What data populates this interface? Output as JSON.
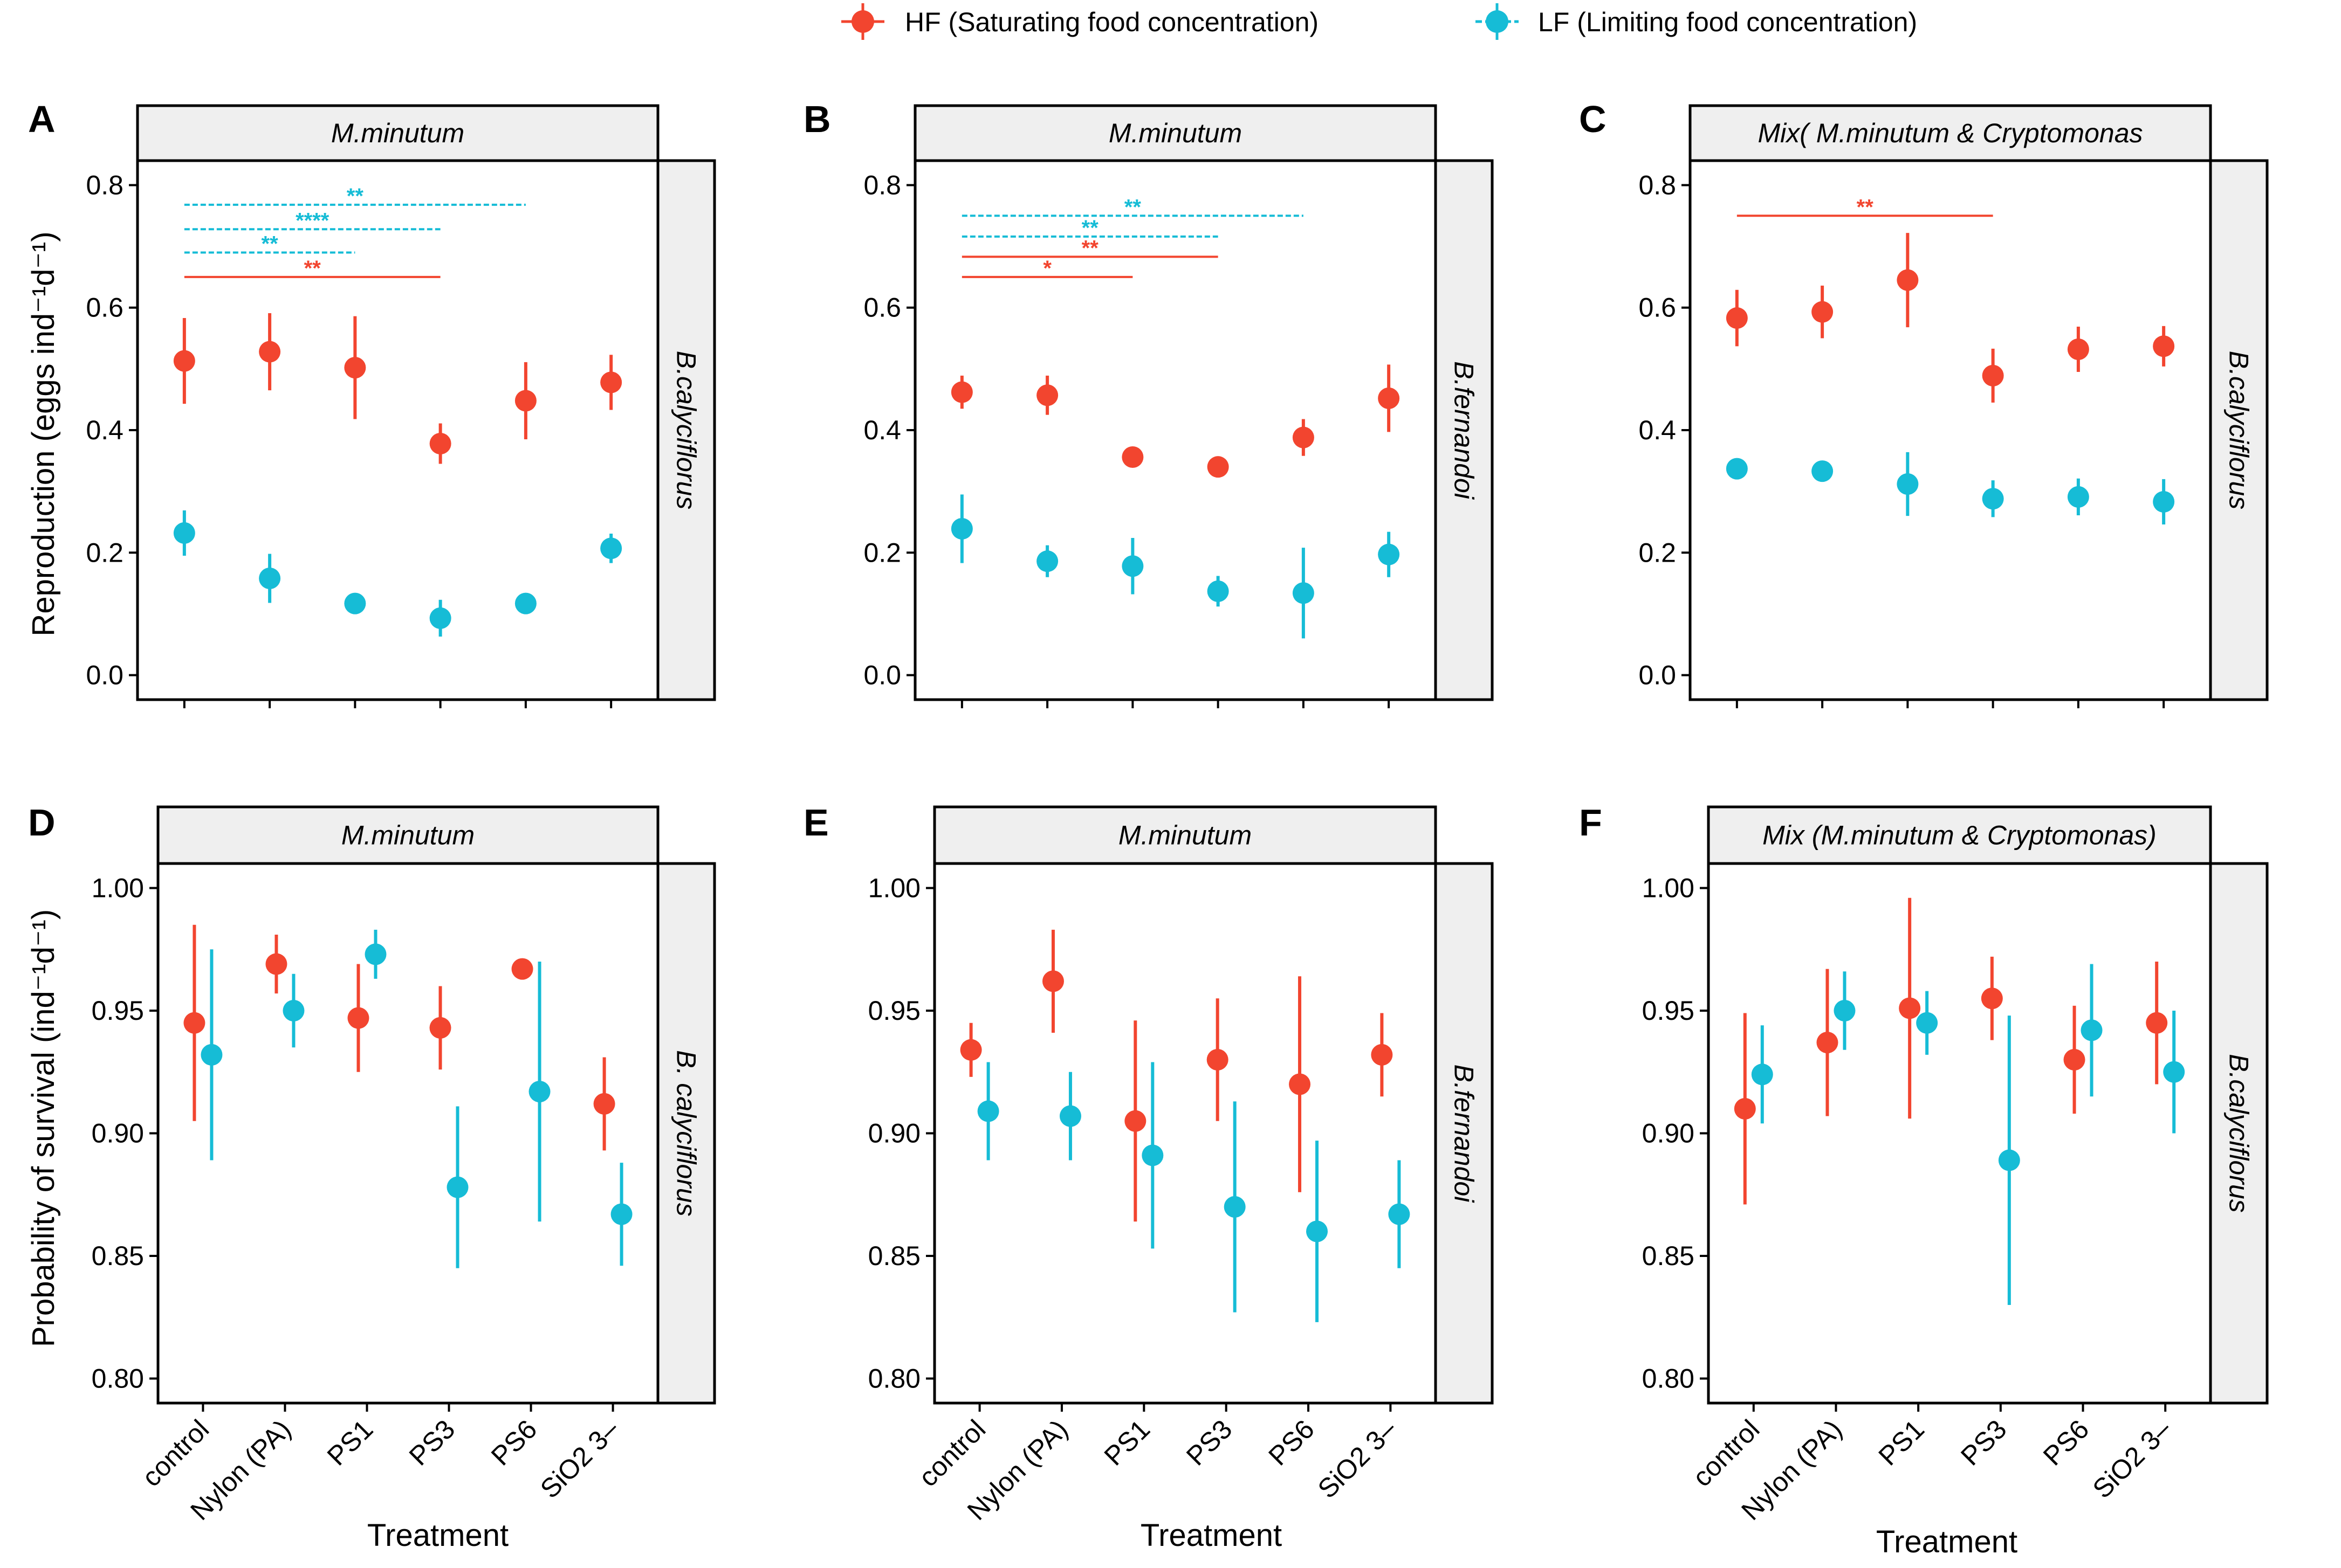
{
  "colors": {
    "HF": "#F2452F",
    "LF": "#16BCD6"
  },
  "legend": {
    "hf_label": "HF (Saturating food concentration)",
    "lf_label": "LF (Limiting food concentration)"
  },
  "y_titles": {
    "reproduction": "Reproduction (eggs ind⁻¹d⁻¹)",
    "survival": "Probability of survival (ind⁻¹d⁻¹)"
  },
  "x_title": "Treatment",
  "chart_data": [
    {
      "panel": "A",
      "type": "scatter",
      "strip_top": "M.minutum",
      "strip_right": "B.calyciflorus",
      "ylabel": "Reproduction (eggs ind⁻¹d⁻¹)",
      "xlabel": "",
      "ylim": [
        -0.04,
        0.84
      ],
      "yticks": [
        0.0,
        0.2,
        0.4,
        0.6,
        0.8
      ],
      "ytick_labels": [
        "0.0",
        "0.2",
        "0.4",
        "0.6",
        "0.8"
      ],
      "categories": [
        "control",
        "Nylon (PA)",
        "PS1",
        "PS3",
        "PS6",
        "SiO2 3–"
      ],
      "show_x_labels": false,
      "series": [
        {
          "name": "HF",
          "values": [
            0.513,
            0.528,
            0.502,
            0.378,
            0.448,
            0.478
          ],
          "lower": [
            0.443,
            0.465,
            0.418,
            0.345,
            0.385,
            0.433
          ],
          "upper": [
            0.583,
            0.591,
            0.586,
            0.411,
            0.511,
            0.523
          ]
        },
        {
          "name": "LF",
          "values": [
            0.232,
            0.158,
            0.117,
            0.093,
            0.117,
            0.207
          ],
          "lower": [
            0.195,
            0.118,
            0.117,
            0.063,
            0.117,
            0.183
          ],
          "upper": [
            0.269,
            0.198,
            0.117,
            0.123,
            0.117,
            0.231
          ]
        }
      ],
      "annotations": [
        {
          "series": "HF",
          "from": "control",
          "to": "PS3",
          "y": 0.65,
          "label": "**"
        },
        {
          "series": "LF",
          "from": "control",
          "to": "PS1",
          "y": 0.69,
          "label": "**"
        },
        {
          "series": "LF",
          "from": "control",
          "to": "PS3",
          "y": 0.728,
          "label": "****"
        },
        {
          "series": "LF",
          "from": "control",
          "to": "PS6",
          "y": 0.768,
          "label": "**"
        }
      ]
    },
    {
      "panel": "B",
      "type": "scatter",
      "strip_top": "M.minutum",
      "strip_right": "B.fernandoi",
      "ylabel": "",
      "xlabel": "",
      "ylim": [
        -0.04,
        0.84
      ],
      "yticks": [
        0.0,
        0.2,
        0.4,
        0.6,
        0.8
      ],
      "ytick_labels": [
        "0.0",
        "0.2",
        "0.4",
        "0.6",
        "0.8"
      ],
      "categories": [
        "control",
        "Nylon (PA)",
        "PS1",
        "PS3",
        "PS6",
        "SiO2 3–"
      ],
      "show_x_labels": false,
      "series": [
        {
          "name": "HF",
          "values": [
            0.462,
            0.457,
            0.356,
            0.34,
            0.388,
            0.452
          ],
          "lower": [
            0.435,
            0.425,
            0.356,
            0.34,
            0.358,
            0.397
          ],
          "upper": [
            0.489,
            0.489,
            0.356,
            0.34,
            0.418,
            0.507
          ]
        },
        {
          "name": "LF",
          "values": [
            0.239,
            0.186,
            0.178,
            0.137,
            0.134,
            0.197
          ],
          "lower": [
            0.183,
            0.16,
            0.132,
            0.112,
            0.06,
            0.16
          ],
          "upper": [
            0.295,
            0.212,
            0.224,
            0.162,
            0.208,
            0.234
          ]
        }
      ],
      "annotations": [
        {
          "series": "HF",
          "from": "control",
          "to": "PS1",
          "y": 0.65,
          "label": "*"
        },
        {
          "series": "HF",
          "from": "control",
          "to": "PS3",
          "y": 0.683,
          "label": "**"
        },
        {
          "series": "LF",
          "from": "control",
          "to": "PS3",
          "y": 0.716,
          "label": "**"
        },
        {
          "series": "LF",
          "from": "control",
          "to": "PS6",
          "y": 0.75,
          "label": "**"
        }
      ]
    },
    {
      "panel": "C",
      "type": "scatter",
      "strip_top": "Mix( M.minutum & Cryptomonas",
      "strip_right": "B.calyciflorus",
      "ylabel": "",
      "xlabel": "",
      "ylim": [
        -0.04,
        0.84
      ],
      "yticks": [
        0.0,
        0.2,
        0.4,
        0.6,
        0.8
      ],
      "ytick_labels": [
        "0.0",
        "0.2",
        "0.4",
        "0.6",
        "0.8"
      ],
      "categories": [
        "control",
        "Nylon (PA)",
        "PS1",
        "PS3",
        "PS6",
        "SiO2 3–"
      ],
      "show_x_labels": false,
      "series": [
        {
          "name": "HF",
          "values": [
            0.583,
            0.593,
            0.645,
            0.489,
            0.532,
            0.537
          ],
          "lower": [
            0.537,
            0.55,
            0.568,
            0.445,
            0.495,
            0.504
          ],
          "upper": [
            0.629,
            0.636,
            0.722,
            0.533,
            0.569,
            0.57
          ]
        },
        {
          "name": "LF",
          "values": [
            0.337,
            0.333,
            0.312,
            0.288,
            0.291,
            0.283
          ],
          "lower": [
            0.337,
            0.318,
            0.26,
            0.258,
            0.261,
            0.246
          ],
          "upper": [
            0.337,
            0.348,
            0.364,
            0.318,
            0.321,
            0.32
          ]
        }
      ],
      "annotations": [
        {
          "series": "HF",
          "from": "control",
          "to": "PS3",
          "y": 0.75,
          "label": "**"
        }
      ]
    },
    {
      "panel": "D",
      "type": "scatter",
      "strip_top": "M.minutum",
      "strip_right": "B. calyciflorus",
      "ylabel": "Probability of survival (ind⁻¹d⁻¹)",
      "xlabel": "Treatment",
      "ylim": [
        0.79,
        1.01
      ],
      "yticks": [
        0.8,
        0.85,
        0.9,
        0.95,
        1.0
      ],
      "ytick_labels": [
        "0.80",
        "0.85",
        "0.90",
        "0.95",
        "1.00"
      ],
      "categories": [
        "control",
        "Nylon (PA)",
        "PS1",
        "PS3",
        "PS6",
        "SiO2 3–"
      ],
      "show_x_labels": true,
      "series": [
        {
          "name": "HF",
          "values": [
            0.945,
            0.969,
            0.947,
            0.943,
            0.967,
            0.912
          ],
          "lower": [
            0.905,
            0.957,
            0.925,
            0.926,
            0.967,
            0.893
          ],
          "upper": [
            0.985,
            0.981,
            0.969,
            0.96,
            0.967,
            0.931
          ]
        },
        {
          "name": "LF",
          "values": [
            0.932,
            0.95,
            0.973,
            0.878,
            0.917,
            0.867
          ],
          "lower": [
            0.889,
            0.935,
            0.963,
            0.845,
            0.864,
            0.846
          ],
          "upper": [
            0.975,
            0.965,
            0.983,
            0.911,
            0.97,
            0.888
          ]
        }
      ],
      "annotations": []
    },
    {
      "panel": "E",
      "type": "scatter",
      "strip_top": "M.minutum",
      "strip_right": "B.fernandoi",
      "ylabel": "",
      "xlabel": "Treatment",
      "ylim": [
        0.79,
        1.01
      ],
      "yticks": [
        0.8,
        0.85,
        0.9,
        0.95,
        1.0
      ],
      "ytick_labels": [
        "0.80",
        "0.85",
        "0.90",
        "0.95",
        "1.00"
      ],
      "categories": [
        "control",
        "Nylon (PA)",
        "PS1",
        "PS3",
        "PS6",
        "SiO2 3–"
      ],
      "show_x_labels": true,
      "series": [
        {
          "name": "HF",
          "values": [
            0.934,
            0.962,
            0.905,
            0.93,
            0.92,
            0.932
          ],
          "lower": [
            0.923,
            0.941,
            0.864,
            0.905,
            0.876,
            0.915
          ],
          "upper": [
            0.945,
            0.983,
            0.946,
            0.955,
            0.964,
            0.949
          ]
        },
        {
          "name": "LF",
          "values": [
            0.909,
            0.907,
            0.891,
            0.87,
            0.86,
            0.867
          ],
          "lower": [
            0.889,
            0.889,
            0.853,
            0.827,
            0.823,
            0.845
          ],
          "upper": [
            0.929,
            0.925,
            0.929,
            0.913,
            0.897,
            0.889
          ]
        }
      ],
      "annotations": []
    },
    {
      "panel": "F",
      "type": "scatter",
      "strip_top": "Mix (M.minutum & Cryptomonas)",
      "strip_right": "B.calyciflorus",
      "ylabel": "",
      "xlabel": "Treatment",
      "ylim": [
        0.79,
        1.01
      ],
      "yticks": [
        0.8,
        0.85,
        0.9,
        0.95,
        1.0
      ],
      "ytick_labels": [
        "0.80",
        "0.85",
        "0.90",
        "0.95",
        "1.00"
      ],
      "categories": [
        "control",
        "Nylon (PA)",
        "PS1",
        "PS3",
        "PS6",
        "SiO2 3–"
      ],
      "show_x_labels": true,
      "series": [
        {
          "name": "HF",
          "values": [
            0.91,
            0.937,
            0.951,
            0.955,
            0.93,
            0.945
          ],
          "lower": [
            0.871,
            0.907,
            0.906,
            0.938,
            0.908,
            0.92
          ],
          "upper": [
            0.949,
            0.967,
            0.996,
            0.972,
            0.952,
            0.97
          ]
        },
        {
          "name": "LF",
          "values": [
            0.924,
            0.95,
            0.945,
            0.889,
            0.942,
            0.925
          ],
          "lower": [
            0.904,
            0.934,
            0.932,
            0.83,
            0.915,
            0.9
          ],
          "upper": [
            0.944,
            0.966,
            0.958,
            0.948,
            0.969,
            0.95
          ]
        }
      ],
      "annotations": []
    }
  ]
}
